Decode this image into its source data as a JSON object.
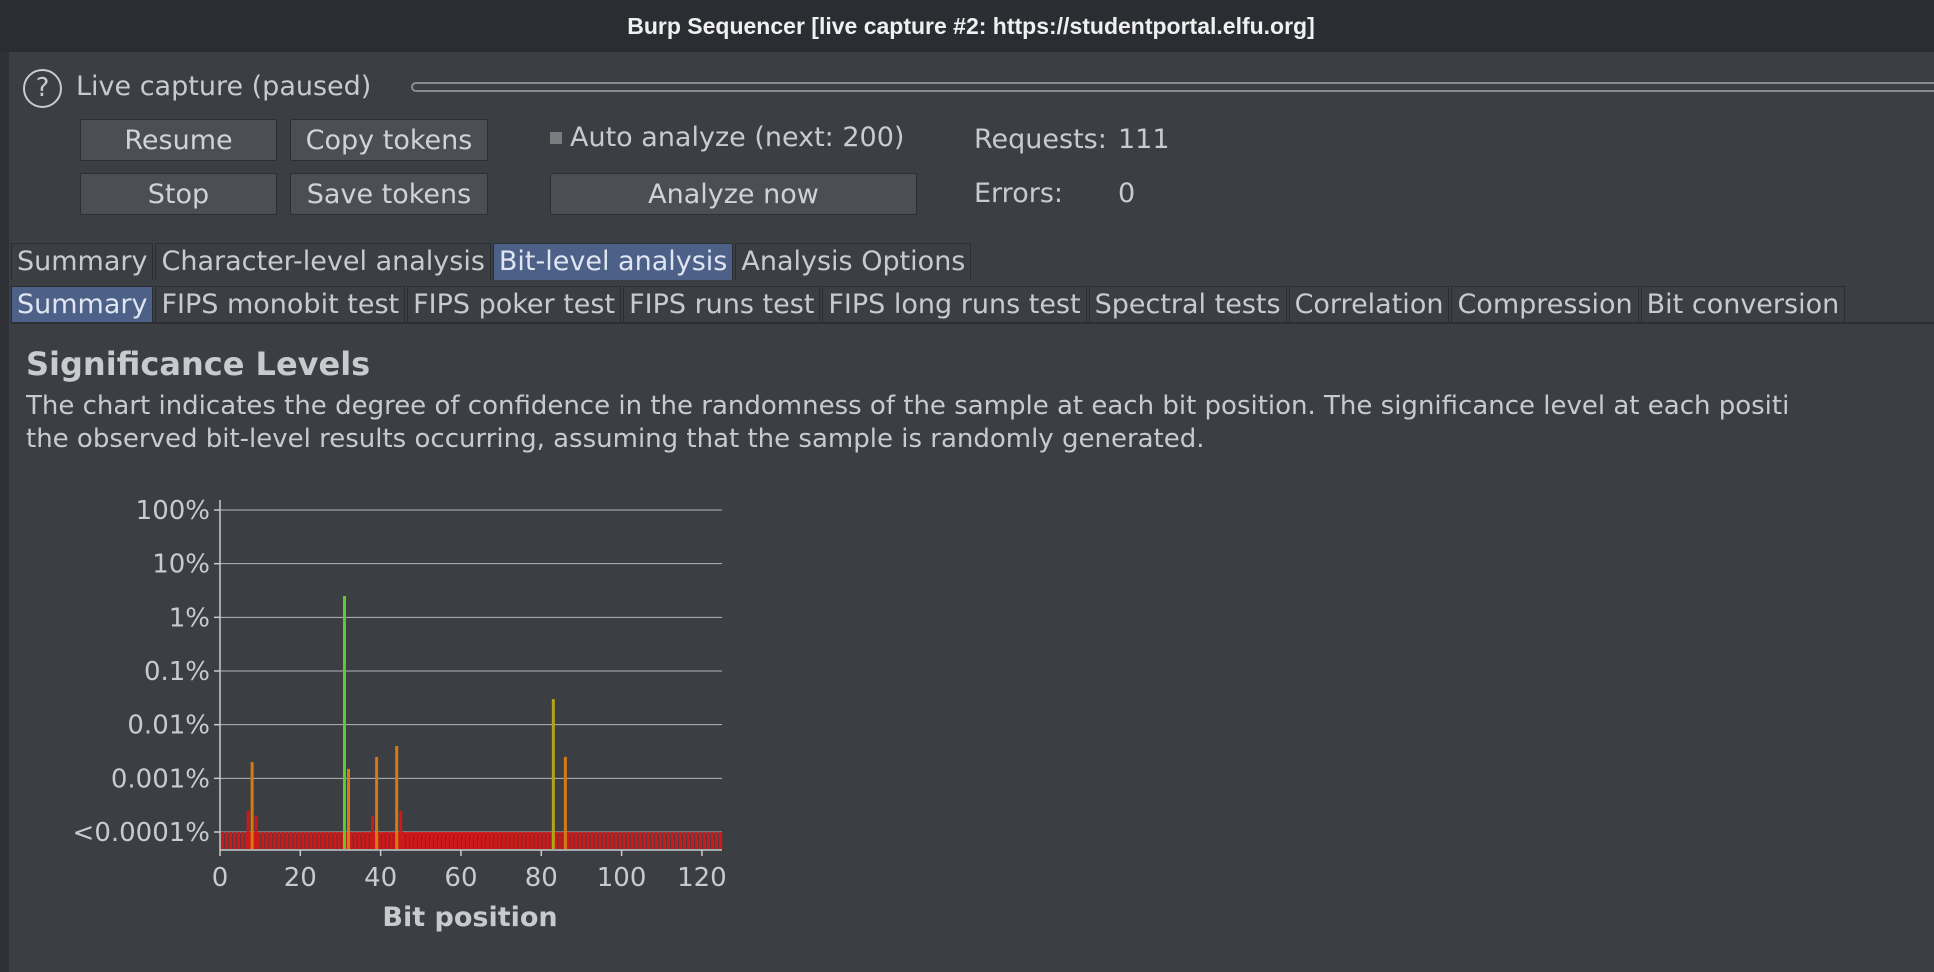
{
  "window": {
    "title": "Burp Sequencer [live capture #2: https://studentportal.elfu.org]"
  },
  "capture": {
    "status": "Live capture (paused)",
    "buttons": {
      "resume": "Resume",
      "copy_tokens": "Copy tokens",
      "stop": "Stop",
      "save_tokens": "Save tokens",
      "analyze_now": "Analyze now"
    },
    "auto_analyze": {
      "label": "Auto analyze (next: 200)",
      "checked": false
    },
    "stats": {
      "requests_label": "Requests:",
      "requests_value": "111",
      "errors_label": "Errors:",
      "errors_value": "0"
    }
  },
  "main_tabs": [
    {
      "label": "Summary",
      "active": false
    },
    {
      "label": "Character-level analysis",
      "active": false
    },
    {
      "label": "Bit-level analysis",
      "active": true
    },
    {
      "label": "Analysis Options",
      "active": false
    }
  ],
  "sub_tabs": [
    {
      "label": "Summary",
      "active": true
    },
    {
      "label": "FIPS monobit test",
      "active": false
    },
    {
      "label": "FIPS poker test",
      "active": false
    },
    {
      "label": "FIPS runs test",
      "active": false
    },
    {
      "label": "FIPS long runs test",
      "active": false
    },
    {
      "label": "Spectral tests",
      "active": false
    },
    {
      "label": "Correlation",
      "active": false
    },
    {
      "label": "Compression",
      "active": false
    },
    {
      "label": "Bit conversion",
      "active": false
    }
  ],
  "section": {
    "title": "Significance Levels",
    "description_line1": "The chart indicates the degree of confidence in the randomness of the sample at each bit position. The significance level at each positi",
    "description_line2": "the observed bit-level results occurring, assuming that the sample is randomly generated."
  },
  "chart_data": {
    "type": "bar",
    "xlabel": "Bit position",
    "ylabel": "",
    "x_ticks": [
      "0",
      "20",
      "40",
      "60",
      "80",
      "100",
      "120"
    ],
    "y_ticks": [
      "<0.0001%",
      "0.001%",
      "0.01%",
      "0.1%",
      "1%",
      "10%",
      "100%"
    ],
    "y_scale": "log",
    "xlim": [
      0,
      125
    ],
    "ylim": [
      0.0001,
      100
    ],
    "baseline_bits": 125,
    "baseline_value": "<0.0001%",
    "highlighted_bars": [
      {
        "bit": 7,
        "value": 0.00025
      },
      {
        "bit": 8,
        "value": 0.002
      },
      {
        "bit": 9,
        "value": 0.0002
      },
      {
        "bit": 31,
        "value": 2.5
      },
      {
        "bit": 32,
        "value": 0.0015
      },
      {
        "bit": 38,
        "value": 0.0002
      },
      {
        "bit": 39,
        "value": 0.0025
      },
      {
        "bit": 44,
        "value": 0.004
      },
      {
        "bit": 45,
        "value": 0.00025
      },
      {
        "bit": 83,
        "value": 0.03
      },
      {
        "bit": 86,
        "value": 0.0025
      }
    ],
    "colors": {
      "low": "#cc1a1a",
      "mid": "#d67a12",
      "midhigh": "#b3a514",
      "high": "#5acd2a",
      "grid": "#c8cbce"
    }
  }
}
